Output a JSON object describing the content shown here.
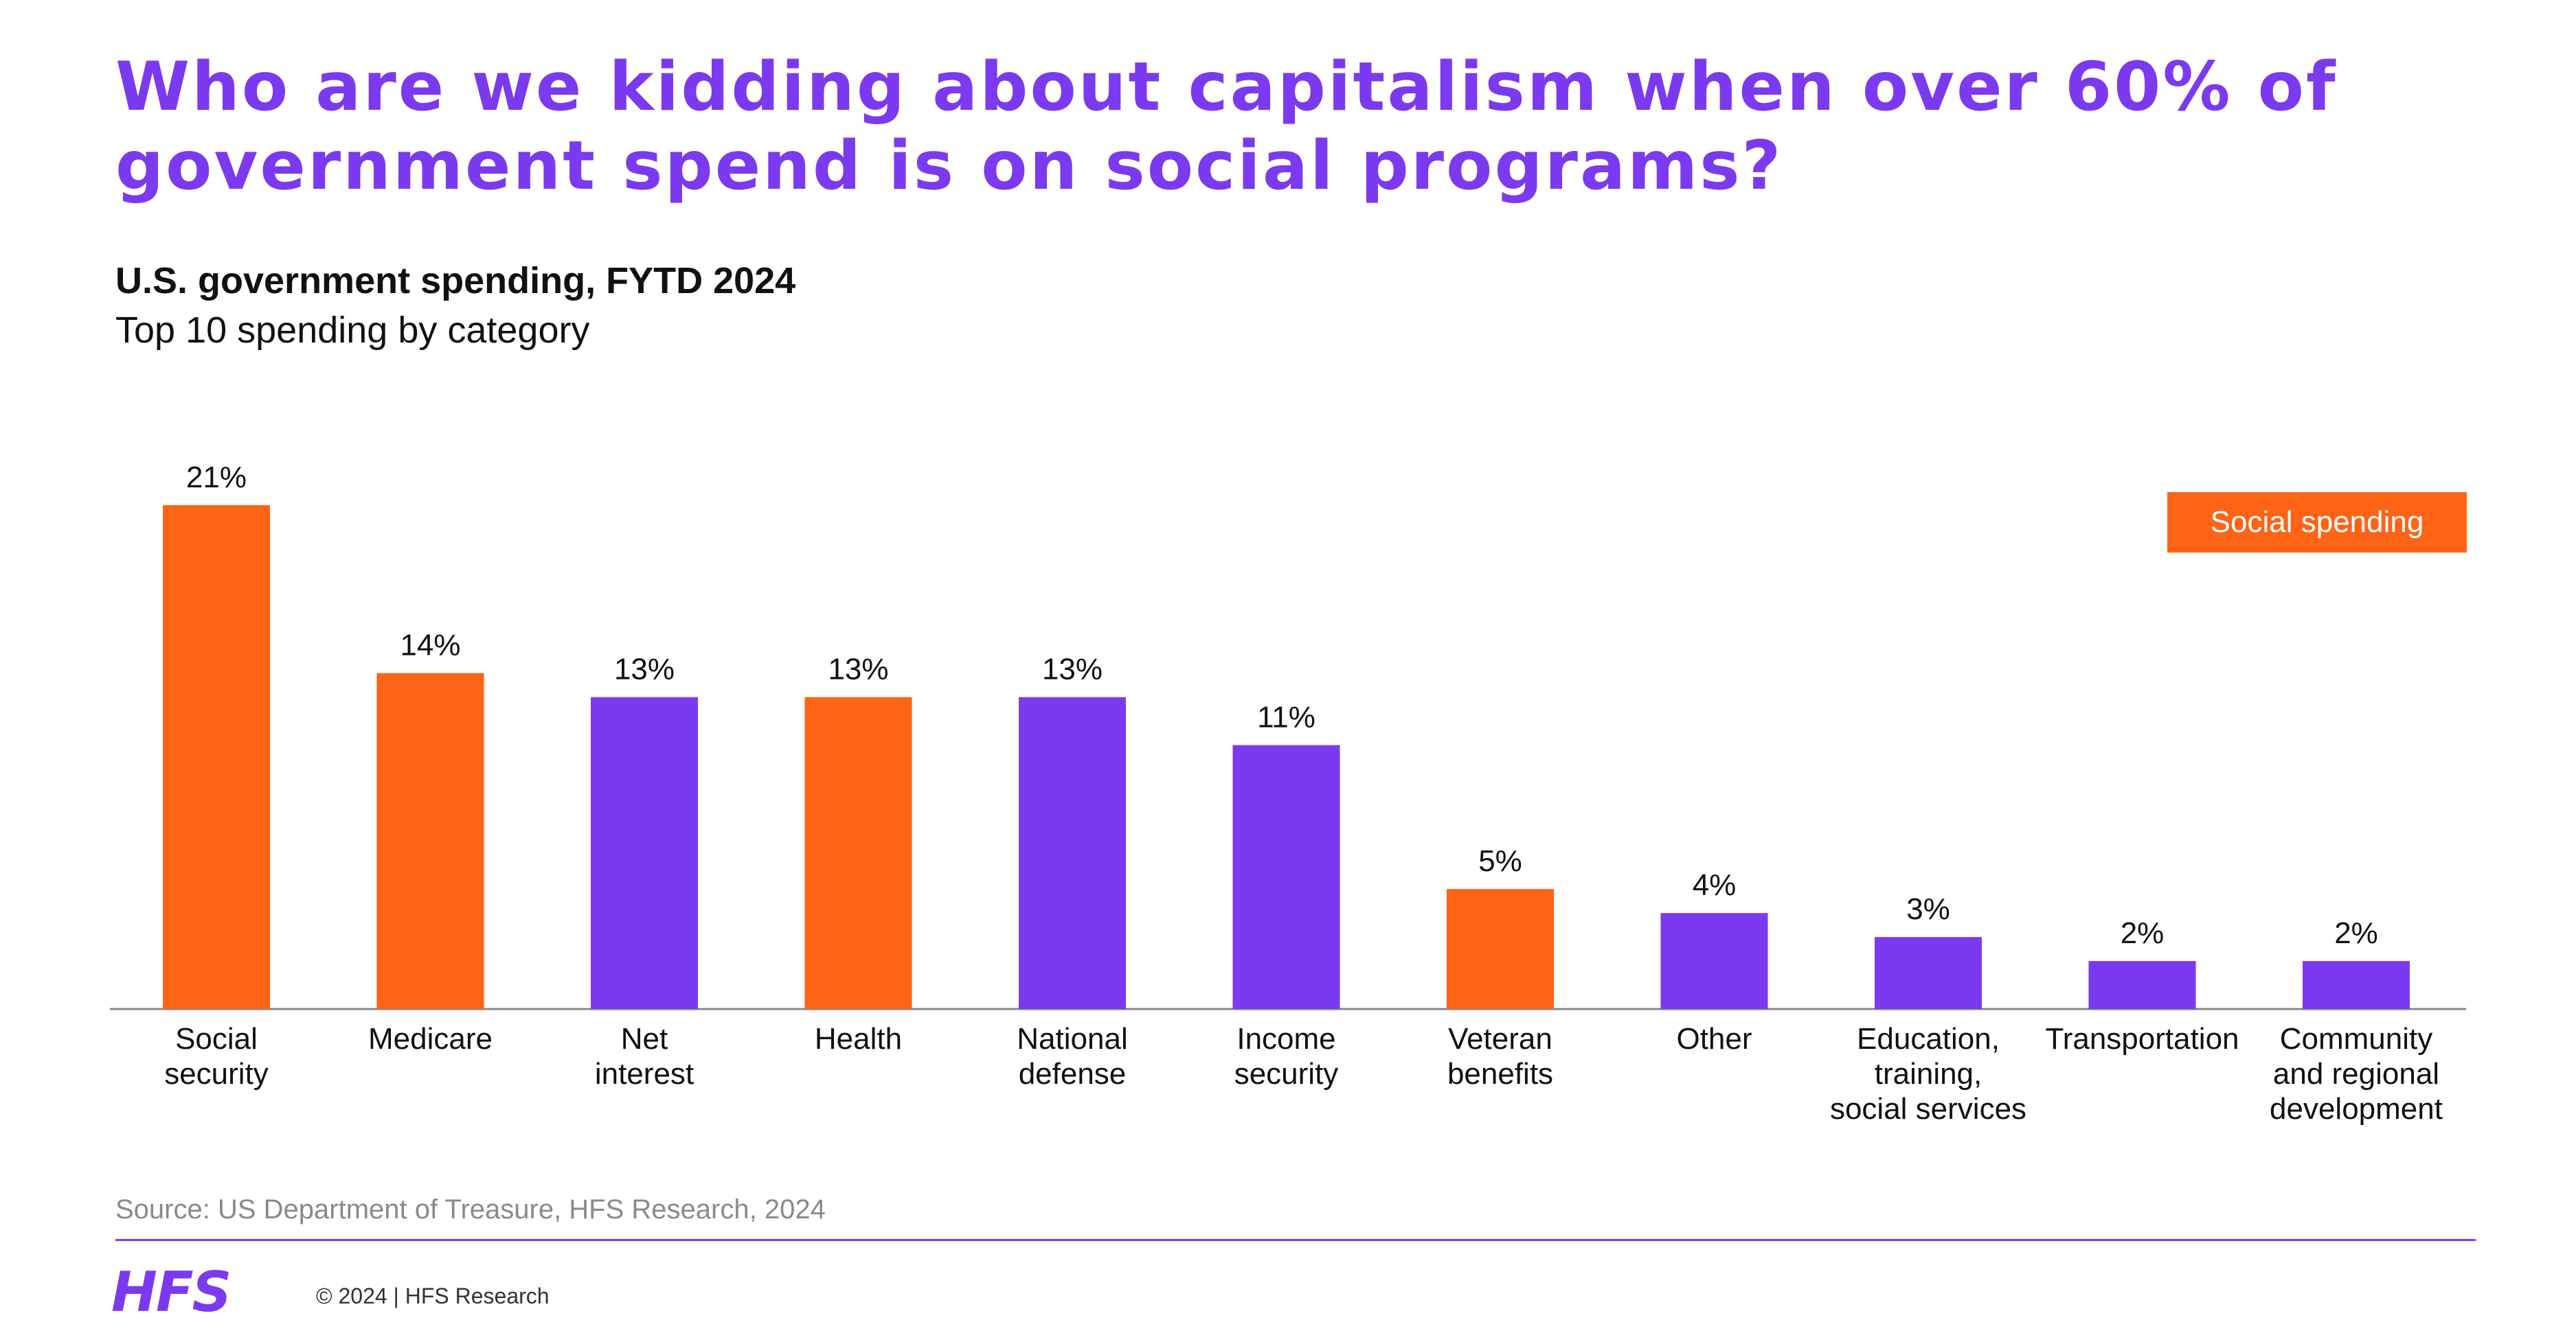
{
  "headline": "Who are we kidding about capitalism when over 60% of government spend is on social programs?",
  "chart_title": "U.S. government spending, FYTD 2024",
  "chart_subtitle": "Top 10 spending by category",
  "legend_label": "Social spending",
  "source": "Source: US Department of Treasure, HFS Research, 2024",
  "footer": {
    "logo": "HFS",
    "copyright": "© 2024 | HFS Research"
  },
  "colors": {
    "social": "#ff6315",
    "other": "#7b3af0",
    "headline": "#7b3af0",
    "axis": "#888888"
  },
  "chart_data": {
    "type": "bar",
    "title": "U.S. government spending, FYTD 2024",
    "subtitle": "Top 10 spending by category",
    "ylim": [
      0,
      21
    ],
    "grid": false,
    "legend_position": "top-right",
    "categories": [
      [
        "Social",
        "security"
      ],
      [
        "Medicare"
      ],
      [
        "Net",
        "interest"
      ],
      [
        "Health"
      ],
      [
        "National",
        "defense"
      ],
      [
        "Income",
        "security"
      ],
      [
        "Veteran",
        "benefits"
      ],
      [
        "Other"
      ],
      [
        "Education,",
        "training,",
        "social services"
      ],
      [
        "Transportation"
      ],
      [
        "Community",
        "and regional",
        "development"
      ]
    ],
    "values": [
      21,
      14,
      13,
      13,
      13,
      11,
      5,
      4,
      3,
      2,
      2
    ],
    "labels": [
      "21%",
      "14%",
      "13%",
      "13%",
      "13%",
      "11%",
      "5%",
      "4%",
      "3%",
      "2%",
      "2%"
    ],
    "social": [
      true,
      true,
      false,
      true,
      false,
      false,
      true,
      false,
      false,
      false,
      false
    ],
    "series": [
      {
        "name": "Social spending"
      }
    ]
  }
}
